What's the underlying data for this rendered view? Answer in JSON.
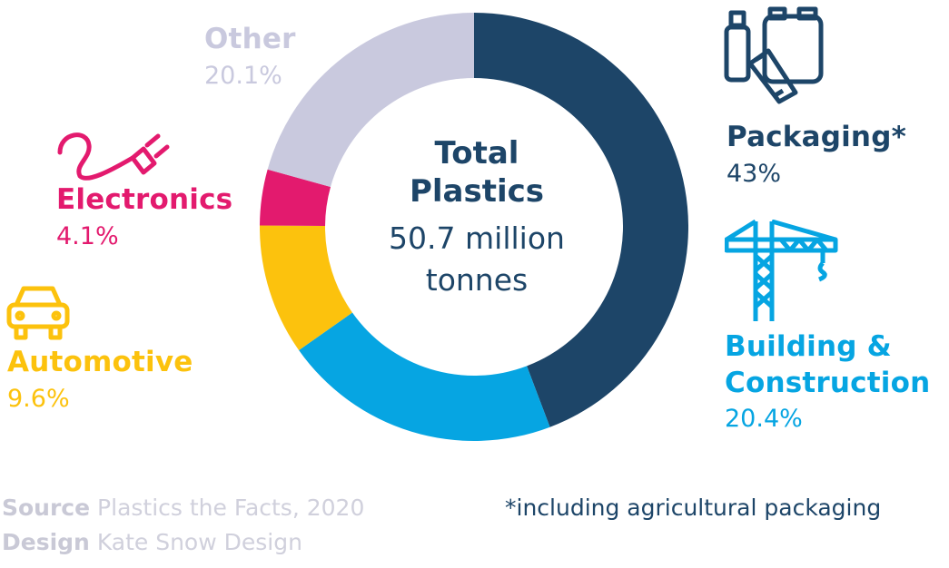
{
  "chart_data": {
    "type": "pie",
    "variant": "donut",
    "center_title": "Total Plastics",
    "center_value": "50.7 million tonnes",
    "slices": [
      {
        "name": "Packaging*",
        "value": 43,
        "value_label": "43%",
        "color": "#1d4568",
        "icon": "packaging-icon"
      },
      {
        "name": "Building & Construction",
        "value": 20.4,
        "value_label": "20.4%",
        "color": "#06a5e2",
        "icon": "crane-icon"
      },
      {
        "name": "Automotive",
        "value": 9.6,
        "value_label": "9.6%",
        "color": "#fcc20d",
        "icon": "car-icon"
      },
      {
        "name": "Electronics",
        "value": 4.1,
        "value_label": "4.1%",
        "color": "#e31a6e",
        "icon": "plug-icon"
      },
      {
        "name": "Other",
        "value": 20.1,
        "value_label": "20.1%",
        "color": "#c9c9de",
        "icon": ""
      }
    ]
  },
  "center": {
    "title_line1": "Total",
    "title_line2": "Plastics",
    "value_line1": "50.7 million",
    "value_line2": "tonnes"
  },
  "labels": {
    "packaging": {
      "name": "Packaging*",
      "pct": "43%"
    },
    "building": {
      "name_line1": "Building &",
      "name_line2": "Construction",
      "pct": "20.4%"
    },
    "automotive": {
      "name": "Automotive",
      "pct": "9.6%"
    },
    "electronics": {
      "name": "Electronics",
      "pct": "4.1%"
    },
    "other": {
      "name": "Other",
      "pct": "20.1%"
    }
  },
  "footer": {
    "source_label": "Source",
    "source_text": "Plastics the Facts, 2020",
    "design_label": "Design",
    "design_text": "Kate Snow Design",
    "note": "*including agricultural packaging"
  }
}
